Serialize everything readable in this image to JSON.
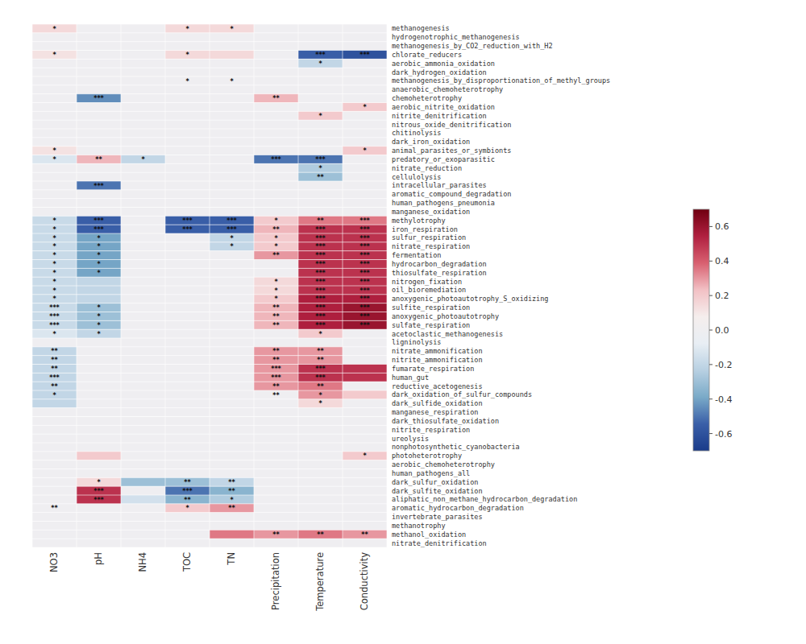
{
  "chart_data": {
    "type": "heatmap",
    "rows": [
      "methanogenesis",
      "hydrogenotrophic_methanogenesis",
      "methanogenesis_by_CO2_reduction_with_H2",
      "chlorate_reducers",
      "aerobic_ammonia_oxidation",
      "dark_hydrogen_oxidation",
      "methanogenesis_by_disproportionation_of_methyl_groups",
      "anaerobic_chemoheterotrophy",
      "chemoheterotrophy",
      "aerobic_nitrite_oxidation",
      "nitrite_denitrification",
      "nitrous_oxide_denitrification",
      "chitinolysis",
      "dark_iron_oxidation",
      "animal_parasites_or_symbionts",
      "predatory_or_exoparasitic",
      "nitrate_reduction",
      "cellulolysis",
      "intracellular_parasites",
      "aromatic_compound_degradation",
      "human_pathogens_pneumonia",
      "manganese_oxidation",
      "methylotrophy",
      "iron_respiration",
      "sulfur_respiration",
      "nitrate_respiration",
      "fermentation",
      "hydrocarbon_degradation",
      "thiosulfate_respiration",
      "nitrogen_fixation",
      "oil_bioremediation",
      "anoxygenic_photoautotrophy_S_oxidizing",
      "sulfite_respiration",
      "anoxygenic_photoautotrophy",
      "sulfate_respiration",
      "acetoclastic_methanogenesis",
      "ligninolysis",
      "nitrate_ammonification",
      "nitrite_ammonification",
      "fumarate_respiration",
      "human_gut",
      "reductive_acetogenesis",
      "dark_oxidation_of_sulfur_compounds",
      "dark_sulfide_oxidation",
      "manganese_respiration",
      "dark_thiosulfate_oxidation",
      "nitrite_respiration",
      "ureolysis",
      "nonphotosynthetic_cyanobacteria",
      "photoheterotrophy",
      "aerobic_chemoheterotrophy",
      "human_pathogens_all",
      "dark_sulfur_oxidation",
      "dark_sulfite_oxidation",
      "aliphatic_non_methane_hydrocarbon_degradation",
      "aromatic_hydrocarbon_degradation",
      "invertebrate_parasites",
      "methanotrophy",
      "methanol_oxidation",
      "nitrate_denitrification"
    ],
    "columns": [
      "NO3",
      "pH",
      "NH4",
      "TOC",
      "TN",
      "Precipitation",
      "Temperature",
      "Conductivity"
    ],
    "values": [
      [
        0.15,
        0,
        0,
        0.15,
        0.15,
        0,
        0,
        0
      ],
      [
        0,
        0,
        0,
        0,
        0,
        0,
        0,
        0
      ],
      [
        0,
        0,
        0,
        0,
        0,
        0,
        0,
        0
      ],
      [
        0.12,
        0,
        0,
        0.15,
        0.15,
        0,
        -0.55,
        -0.6
      ],
      [
        0,
        0,
        0,
        0,
        0,
        0,
        -0.2,
        0
      ],
      [
        0,
        0,
        0,
        0,
        0,
        0,
        0,
        0
      ],
      [
        0,
        0,
        0,
        0,
        0,
        0,
        0,
        0
      ],
      [
        0,
        0,
        0,
        0,
        0,
        0,
        0,
        0
      ],
      [
        0,
        -0.45,
        0,
        0,
        0,
        0.25,
        0,
        0
      ],
      [
        0,
        0,
        0,
        0,
        0,
        0,
        0,
        0.2
      ],
      [
        0,
        0,
        0,
        0,
        0,
        0,
        0.2,
        0
      ],
      [
        0,
        0,
        0,
        0,
        0,
        0,
        0,
        0
      ],
      [
        0,
        0,
        0,
        0,
        0,
        0,
        0,
        0
      ],
      [
        0,
        0,
        0,
        0,
        0,
        0,
        0,
        0
      ],
      [
        0.12,
        0,
        0,
        0,
        0,
        0,
        0,
        0.2
      ],
      [
        -0.12,
        0.25,
        -0.2,
        0,
        0,
        -0.5,
        -0.5,
        0
      ],
      [
        0,
        0,
        0,
        0,
        0,
        0,
        -0.25,
        0
      ],
      [
        0,
        0,
        0,
        0,
        0,
        0,
        -0.3,
        0
      ],
      [
        0,
        -0.5,
        0,
        0,
        0,
        0,
        0,
        0
      ],
      [
        0,
        0,
        0,
        0,
        0,
        0,
        0,
        0
      ],
      [
        0,
        0,
        0,
        0,
        0,
        0,
        0,
        0
      ],
      [
        0,
        0,
        0,
        0,
        0,
        0,
        0,
        0
      ],
      [
        -0.18,
        -0.55,
        0,
        -0.55,
        -0.55,
        0.2,
        0.35,
        0.35
      ],
      [
        -0.18,
        -0.55,
        0,
        -0.55,
        -0.55,
        0.25,
        0.5,
        0.5
      ],
      [
        -0.18,
        -0.4,
        0,
        0,
        -0.2,
        0.2,
        0.5,
        0.5
      ],
      [
        -0.18,
        -0.4,
        0,
        0,
        -0.2,
        0.2,
        0.5,
        0.5
      ],
      [
        -0.18,
        -0.4,
        0,
        0,
        0,
        0.3,
        0.5,
        0.5
      ],
      [
        -0.18,
        -0.4,
        0,
        0,
        0,
        0,
        0.5,
        0.5
      ],
      [
        -0.18,
        -0.4,
        0,
        0,
        0,
        0,
        0.5,
        0.5
      ],
      [
        -0.18,
        -0.2,
        0,
        0,
        0,
        0.15,
        0.5,
        0.5
      ],
      [
        -0.18,
        -0.2,
        0,
        0,
        0,
        0.15,
        0.5,
        0.5
      ],
      [
        -0.18,
        -0.2,
        0,
        0,
        0,
        0.2,
        0.55,
        0.55
      ],
      [
        -0.18,
        -0.3,
        0,
        0,
        0,
        0.25,
        0.55,
        0.6
      ],
      [
        -0.18,
        -0.3,
        0,
        0,
        0,
        0.25,
        0.55,
        0.6
      ],
      [
        -0.18,
        -0.3,
        0,
        0,
        0,
        0.25,
        0.55,
        0.6
      ],
      [
        -0.12,
        -0.2,
        0,
        0,
        0,
        0,
        0.2,
        0
      ],
      [
        0,
        0,
        0,
        0,
        0,
        0,
        0,
        0
      ],
      [
        -0.2,
        0,
        0,
        0,
        0,
        0.3,
        0.3,
        0
      ],
      [
        -0.2,
        0,
        0,
        0,
        0,
        0.3,
        0.3,
        0
      ],
      [
        -0.2,
        0,
        0,
        0,
        0,
        0.3,
        0.5,
        0.5
      ],
      [
        -0.2,
        0,
        0,
        0,
        0,
        0.3,
        0.5,
        0.5
      ],
      [
        -0.2,
        0,
        0,
        0,
        0,
        0.3,
        0.35,
        0
      ],
      [
        -0.2,
        0,
        0,
        0,
        0,
        0,
        0.3,
        0.2
      ],
      [
        -0.2,
        0,
        0,
        0,
        0,
        0,
        0.15,
        0
      ],
      [
        0,
        0,
        0,
        0,
        0,
        0,
        0,
        0
      ],
      [
        0,
        0,
        0,
        0,
        0,
        0,
        0,
        0
      ],
      [
        0,
        0,
        0,
        0,
        0,
        0,
        0,
        0
      ],
      [
        0,
        0,
        0,
        0,
        0,
        0,
        0,
        0
      ],
      [
        0,
        0,
        0,
        0,
        0,
        0,
        0,
        0
      ],
      [
        0,
        0.2,
        0,
        0,
        0,
        0,
        0,
        0.2
      ],
      [
        0,
        0,
        0,
        0,
        0,
        0,
        0,
        0
      ],
      [
        0,
        0,
        0,
        0,
        0,
        0,
        0,
        0
      ],
      [
        0,
        0.15,
        -0.3,
        -0.3,
        -0.2,
        0,
        0,
        0
      ],
      [
        0,
        0.5,
        0,
        -0.5,
        -0.35,
        0,
        0,
        0
      ],
      [
        0,
        0.5,
        -0.15,
        -0.35,
        -0.25,
        0,
        0,
        0
      ],
      [
        0,
        0,
        0,
        0.2,
        0.3,
        0,
        0,
        0
      ],
      [
        0,
        0,
        0,
        0,
        0,
        0,
        0,
        0
      ],
      [
        0,
        0,
        0,
        0,
        0,
        0,
        0,
        0
      ],
      [
        0,
        0,
        0,
        0,
        0.35,
        0.3,
        0.35,
        0.3
      ],
      [
        0,
        0,
        0,
        0,
        0,
        0,
        0,
        0
      ]
    ],
    "cell_labels": [
      [
        "*",
        null,
        null,
        "*",
        "*",
        null,
        null,
        null
      ],
      [
        null,
        null,
        null,
        null,
        null,
        null,
        null,
        null
      ],
      [
        null,
        null,
        null,
        null,
        null,
        null,
        null,
        null
      ],
      [
        "*",
        null,
        null,
        "*",
        null,
        null,
        "***",
        "***"
      ],
      [
        null,
        null,
        null,
        null,
        null,
        null,
        "*",
        null
      ],
      [
        null,
        null,
        null,
        null,
        null,
        null,
        null,
        null
      ],
      [
        null,
        null,
        null,
        "*",
        "*",
        null,
        null,
        null
      ],
      [
        null,
        null,
        null,
        null,
        null,
        null,
        null,
        null
      ],
      [
        null,
        "***",
        null,
        null,
        null,
        "**",
        null,
        null
      ],
      [
        null,
        null,
        null,
        null,
        null,
        null,
        null,
        "*"
      ],
      [
        null,
        null,
        null,
        null,
        null,
        null,
        "*",
        null
      ],
      [
        null,
        null,
        null,
        null,
        null,
        null,
        null,
        null
      ],
      [
        null,
        null,
        null,
        null,
        null,
        null,
        null,
        null
      ],
      [
        null,
        null,
        null,
        null,
        null,
        null,
        null,
        null
      ],
      [
        "*",
        null,
        null,
        null,
        null,
        null,
        null,
        "*"
      ],
      [
        "*",
        "**",
        "*",
        null,
        null,
        "***",
        "***",
        null
      ],
      [
        null,
        null,
        null,
        null,
        null,
        null,
        "*",
        null
      ],
      [
        null,
        null,
        null,
        null,
        null,
        null,
        "**",
        null
      ],
      [
        null,
        "***",
        null,
        null,
        null,
        null,
        null,
        null
      ],
      [
        null,
        null,
        null,
        null,
        null,
        null,
        null,
        null
      ],
      [
        null,
        null,
        null,
        null,
        null,
        null,
        null,
        null
      ],
      [
        null,
        null,
        null,
        null,
        null,
        null,
        null,
        null
      ],
      [
        "*",
        "***",
        null,
        "***",
        "***",
        "*",
        "**",
        "***"
      ],
      [
        "*",
        "***",
        null,
        "***",
        "***",
        "**",
        "***",
        "***"
      ],
      [
        "*",
        "*",
        null,
        null,
        "*",
        "*",
        "***",
        "***"
      ],
      [
        "*",
        "*",
        null,
        null,
        "*",
        "*",
        "***",
        "***"
      ],
      [
        "*",
        "*",
        null,
        null,
        null,
        "**",
        "***",
        "***"
      ],
      [
        "*",
        "*",
        null,
        null,
        null,
        null,
        "***",
        "***"
      ],
      [
        "*",
        "*",
        null,
        null,
        null,
        null,
        "***",
        "***"
      ],
      [
        "*",
        null,
        null,
        null,
        null,
        "*",
        "***",
        "***"
      ],
      [
        "*",
        null,
        null,
        null,
        null,
        "*",
        "***",
        "***"
      ],
      [
        "*",
        null,
        null,
        null,
        null,
        "*",
        "***",
        "***"
      ],
      [
        "***",
        "*",
        null,
        null,
        null,
        "**",
        "***",
        "***"
      ],
      [
        "***",
        "*",
        null,
        null,
        null,
        "**",
        "***",
        "***"
      ],
      [
        "***",
        "*",
        null,
        null,
        null,
        "**",
        "***",
        "***"
      ],
      [
        "*",
        "*",
        null,
        null,
        null,
        null,
        "*",
        null
      ],
      [
        null,
        null,
        null,
        null,
        null,
        null,
        null,
        null
      ],
      [
        "**",
        null,
        null,
        null,
        null,
        "**",
        "**",
        null
      ],
      [
        "**",
        null,
        null,
        null,
        null,
        "**",
        "**",
        null
      ],
      [
        "**",
        null,
        null,
        null,
        null,
        "***",
        "***",
        null
      ],
      [
        "***",
        null,
        null,
        null,
        null,
        "***",
        "***",
        null
      ],
      [
        "**",
        null,
        null,
        null,
        null,
        "**",
        "**",
        null
      ],
      [
        "*",
        null,
        null,
        null,
        null,
        "**",
        "*",
        null
      ],
      [
        null,
        null,
        null,
        null,
        null,
        null,
        "*",
        null
      ],
      [
        null,
        null,
        null,
        null,
        null,
        null,
        null,
        null
      ],
      [
        null,
        null,
        null,
        null,
        null,
        null,
        null,
        null
      ],
      [
        null,
        null,
        null,
        null,
        null,
        null,
        null,
        null
      ],
      [
        null,
        null,
        null,
        null,
        null,
        null,
        null,
        null
      ],
      [
        null,
        null,
        null,
        null,
        null,
        null,
        null,
        null
      ],
      [
        null,
        null,
        null,
        null,
        null,
        null,
        null,
        "*"
      ],
      [
        null,
        null,
        null,
        null,
        null,
        null,
        null,
        null
      ],
      [
        null,
        null,
        null,
        null,
        null,
        null,
        null,
        null
      ],
      [
        null,
        "*",
        null,
        "**",
        "**",
        null,
        null,
        null
      ],
      [
        null,
        "***",
        null,
        "***",
        "**",
        null,
        null,
        null
      ],
      [
        null,
        "***",
        null,
        "**",
        "*",
        null,
        null,
        null
      ],
      [
        "**",
        null,
        null,
        "*",
        "**",
        null,
        null,
        null
      ],
      [
        null,
        null,
        null,
        null,
        null,
        null,
        null,
        null
      ],
      [
        null,
        null,
        null,
        null,
        null,
        null,
        null,
        null
      ],
      [
        null,
        null,
        null,
        null,
        null,
        "**",
        "**",
        "**"
      ],
      [
        null,
        null,
        null,
        null,
        null,
        null,
        null,
        null
      ]
    ],
    "colorbar": {
      "range": [
        -0.7,
        0.7
      ],
      "center": 0,
      "ticks": [
        -0.6,
        -0.4,
        -0.2,
        {
          "value": 0,
          "label": "0.0"
        },
        0.2,
        0.4,
        0.6
      ],
      "colors": [
        "#1A3B8A",
        "#3A5FA8",
        "#7AAAC8",
        "#B8D0E2",
        "#E8EEF4",
        "#F5EEED",
        "#F2C0C4",
        "#D86070",
        "#B02040",
        "#700010"
      ]
    },
    "grid": true
  }
}
